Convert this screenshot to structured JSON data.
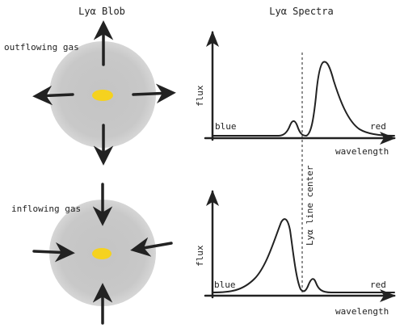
{
  "colors": {
    "blob": "#c8c8c8",
    "core": "#f5d21f",
    "ink": "#222222",
    "blue_label": "#1a3fd6",
    "red_label": "#d8421c"
  },
  "blob_panel": {
    "title": "Lyα Blob",
    "outflow_label": "outflowing gas",
    "inflow_label": "inflowing gas"
  },
  "spectra_panel": {
    "title": "Lyα Spectra",
    "line_center_label": "Lyα line center",
    "top": {
      "y_label": "flux",
      "x_label": "wavelength",
      "blue_label": "blue",
      "red_label": "red"
    },
    "bottom": {
      "y_label": "flux",
      "x_label": "wavelength",
      "blue_label": "blue",
      "red_label": "red"
    }
  },
  "icons": {
    "outflow_arrows": "arrow-outward-icon",
    "inflow_arrows": "arrow-inward-icon"
  }
}
